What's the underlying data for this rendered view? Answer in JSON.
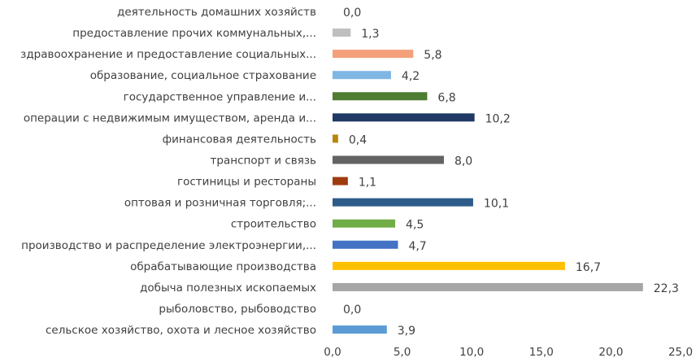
{
  "chart_data": {
    "type": "bar",
    "orientation": "horizontal",
    "title": "",
    "xlabel": "",
    "ylabel": "",
    "xlim": [
      0,
      25
    ],
    "x_ticks": [
      "0,0",
      "5,0",
      "10,0",
      "15,0",
      "20,0",
      "25,0"
    ],
    "grid": false,
    "legend": "none",
    "categories": [
      "деятельность домашних хозяйств",
      "предоставление прочих коммунальных,...",
      "здравоохранение и предоставление социальных...",
      "образование, социальное страхование",
      "государственное управление и...",
      "операции с недвижимым имуществом, аренда и...",
      "финансовая деятельность",
      "транспорт и связь",
      "гостиницы и рестораны",
      "оптовая и розничная торговля;...",
      "строительство",
      "производство и распределение электроэнергии,...",
      "обрабатывающие производства",
      "добыча полезных ископаемых",
      "рыболовство, рыбоводство",
      "сельское хозяйство, охота и лесное хозяйство"
    ],
    "values": [
      0.0,
      1.3,
      5.8,
      4.2,
      6.8,
      10.2,
      0.4,
      8.0,
      1.1,
      10.1,
      4.5,
      4.7,
      16.7,
      22.3,
      0.0,
      3.9
    ],
    "value_labels": [
      "0,0",
      "1,3",
      "5,8",
      "4,2",
      "6,8",
      "10,2",
      "0,4",
      "8,0",
      "1,1",
      "10,1",
      "4,5",
      "4,7",
      "16,7",
      "22,3",
      "0,0",
      "3,9"
    ],
    "colors": [
      "#5B9BD5",
      "#BFBFBF",
      "#F4A07A",
      "#7FB6E3",
      "#4E7C30",
      "#1F3864",
      "#B8860B",
      "#636363",
      "#9E3C0E",
      "#2E5C8A",
      "#70AD47",
      "#4472C4",
      "#FFC000",
      "#A5A5A5",
      "#5B9BD5",
      "#5B9BD5"
    ]
  }
}
